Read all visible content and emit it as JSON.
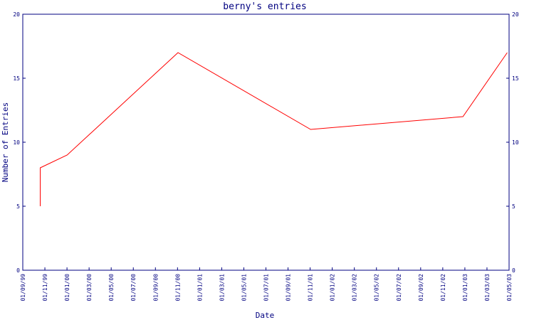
{
  "chart_data": {
    "type": "line",
    "title": "berny's entries",
    "xlabel": "Date",
    "ylabel": "Number of Entries",
    "ylim": [
      0,
      20
    ],
    "yticks": [
      0,
      5,
      10,
      15,
      20
    ],
    "xlim": [
      "1999-09-01",
      "2003-05-01"
    ],
    "xtick_labels": [
      "01/09/99",
      "01/11/99",
      "01/01/00",
      "01/03/00",
      "01/05/00",
      "01/07/00",
      "01/09/00",
      "01/11/00",
      "01/01/01",
      "01/03/01",
      "01/05/01",
      "01/07/01",
      "01/09/01",
      "01/11/01",
      "01/01/02",
      "01/03/02",
      "01/05/02",
      "01/07/02",
      "01/09/02",
      "01/11/02",
      "01/01/03",
      "01/03/03",
      "01/05/03"
    ],
    "grid": false,
    "colors": {
      "axes": "#000080",
      "series": "#ff0000"
    },
    "series": [
      {
        "x": [
          "1999-10-19",
          "1999-10-19",
          "2000-01-01",
          "2000-11-01",
          "2001-11-01",
          "2002-12-25",
          "2003-04-26"
        ],
        "y": [
          5,
          8,
          9,
          17,
          11,
          12,
          17
        ]
      }
    ]
  }
}
